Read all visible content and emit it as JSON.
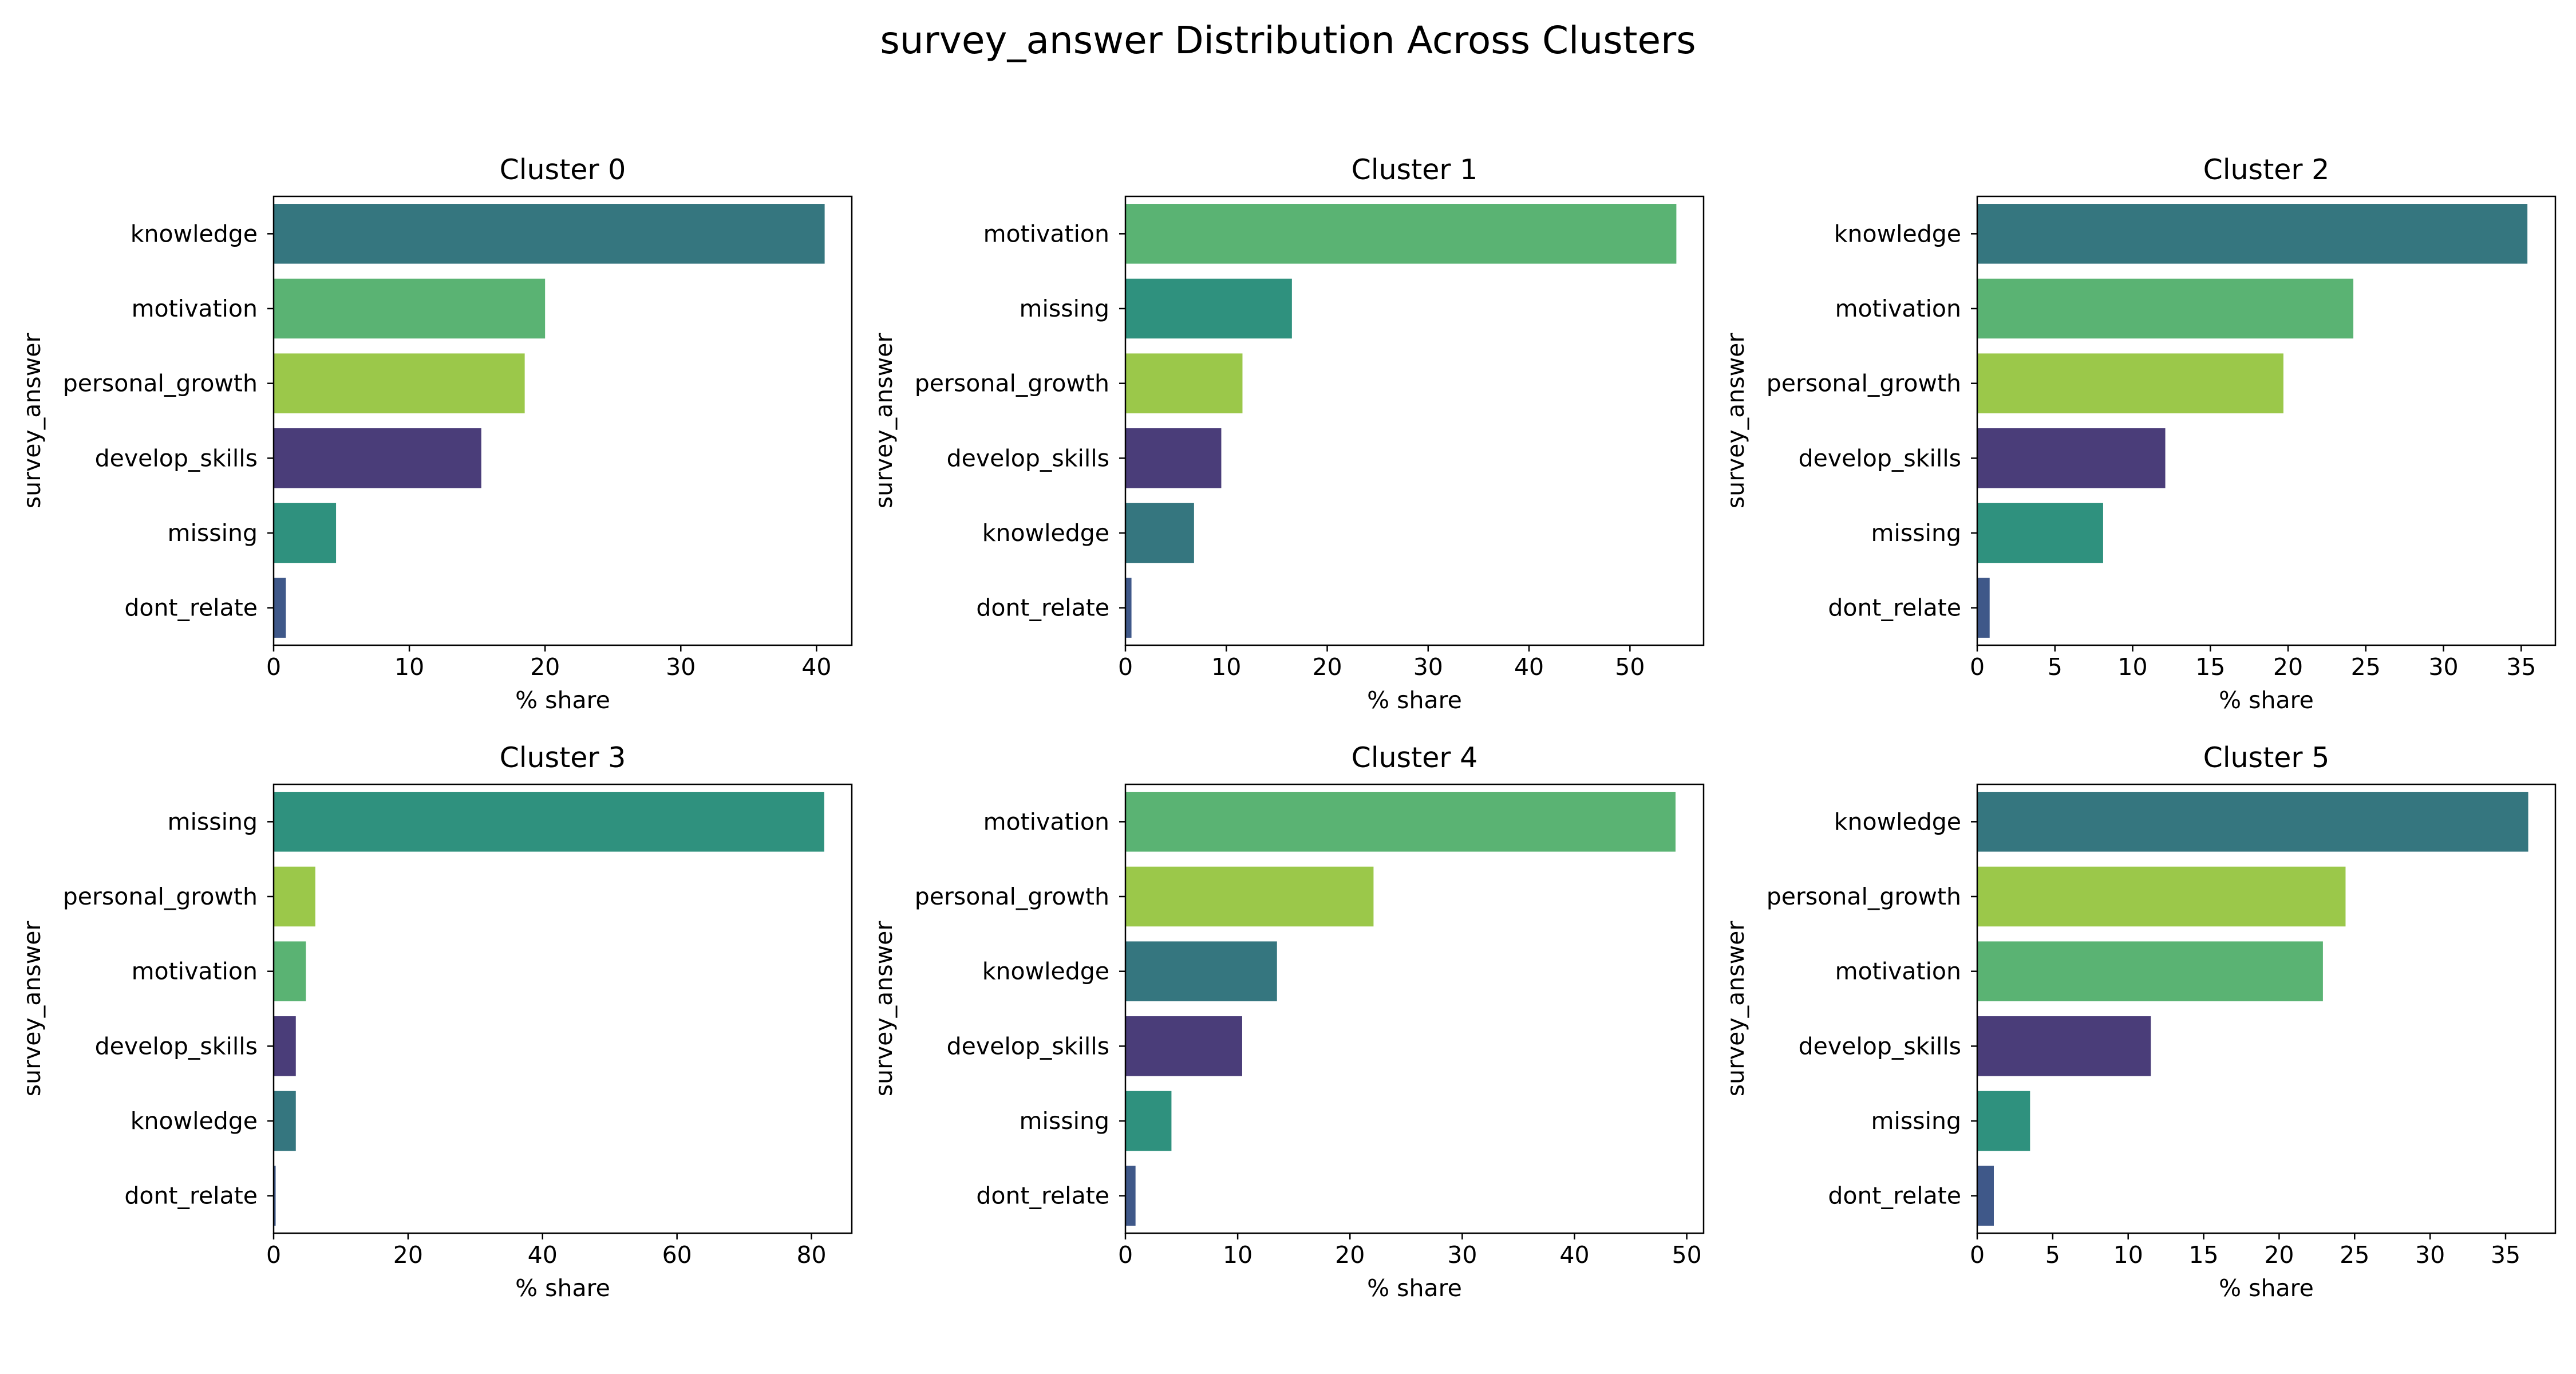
{
  "title": "survey_answer Distribution Across Clusters",
  "colors": {
    "knowledge": "#35767f",
    "motivation": "#5ab373",
    "personal_growth": "#9bc84a",
    "develop_skills": "#4a3d79",
    "missing": "#2f917e",
    "dont_relate": "#3f5889"
  },
  "chart_data": [
    {
      "type": "bar",
      "orientation": "horizontal",
      "title": "Cluster 0",
      "xlabel": "% share",
      "ylabel": "survey_answer",
      "categories": [
        "knowledge",
        "motivation",
        "personal_growth",
        "develop_skills",
        "missing",
        "dont_relate"
      ],
      "values": [
        40.6,
        20.0,
        18.5,
        15.3,
        4.6,
        0.9
      ],
      "xlim": [
        0,
        42.6
      ],
      "xticks": [
        0,
        10,
        20,
        30,
        40
      ]
    },
    {
      "type": "bar",
      "orientation": "horizontal",
      "title": "Cluster 1",
      "xlabel": "% share",
      "ylabel": "survey_answer",
      "categories": [
        "motivation",
        "missing",
        "personal_growth",
        "develop_skills",
        "knowledge",
        "dont_relate"
      ],
      "values": [
        54.6,
        16.5,
        11.6,
        9.5,
        6.8,
        0.6
      ],
      "xlim": [
        0,
        57.3
      ],
      "xticks": [
        0,
        10,
        20,
        30,
        40,
        50
      ]
    },
    {
      "type": "bar",
      "orientation": "horizontal",
      "title": "Cluster 2",
      "xlabel": "% share",
      "ylabel": "survey_answer",
      "categories": [
        "knowledge",
        "motivation",
        "personal_growth",
        "develop_skills",
        "missing",
        "dont_relate"
      ],
      "values": [
        35.4,
        24.2,
        19.7,
        12.1,
        8.1,
        0.8
      ],
      "xlim": [
        0,
        37.2
      ],
      "xticks": [
        0,
        5,
        10,
        15,
        20,
        25,
        30,
        35
      ]
    },
    {
      "type": "bar",
      "orientation": "horizontal",
      "title": "Cluster 3",
      "xlabel": "% share",
      "ylabel": "survey_answer",
      "categories": [
        "missing",
        "personal_growth",
        "motivation",
        "develop_skills",
        "knowledge",
        "dont_relate"
      ],
      "values": [
        81.9,
        6.2,
        4.8,
        3.3,
        3.3,
        0.3
      ],
      "xlim": [
        0,
        86
      ],
      "xticks": [
        0,
        20,
        40,
        60,
        80
      ]
    },
    {
      "type": "bar",
      "orientation": "horizontal",
      "title": "Cluster 4",
      "xlabel": "% share",
      "ylabel": "survey_answer",
      "categories": [
        "motivation",
        "personal_growth",
        "knowledge",
        "develop_skills",
        "missing",
        "dont_relate"
      ],
      "values": [
        49.0,
        22.1,
        13.5,
        10.4,
        4.1,
        0.9
      ],
      "xlim": [
        0,
        51.5
      ],
      "xticks": [
        0,
        10,
        20,
        30,
        40,
        50
      ]
    },
    {
      "type": "bar",
      "orientation": "horizontal",
      "title": "Cluster 5",
      "xlabel": "% share",
      "ylabel": "survey_answer",
      "categories": [
        "knowledge",
        "personal_growth",
        "motivation",
        "develop_skills",
        "missing",
        "dont_relate"
      ],
      "values": [
        36.5,
        24.4,
        22.9,
        11.5,
        3.5,
        1.1
      ],
      "xlim": [
        0,
        38.3
      ],
      "xticks": [
        0,
        5,
        10,
        15,
        20,
        25,
        30,
        35
      ]
    }
  ]
}
